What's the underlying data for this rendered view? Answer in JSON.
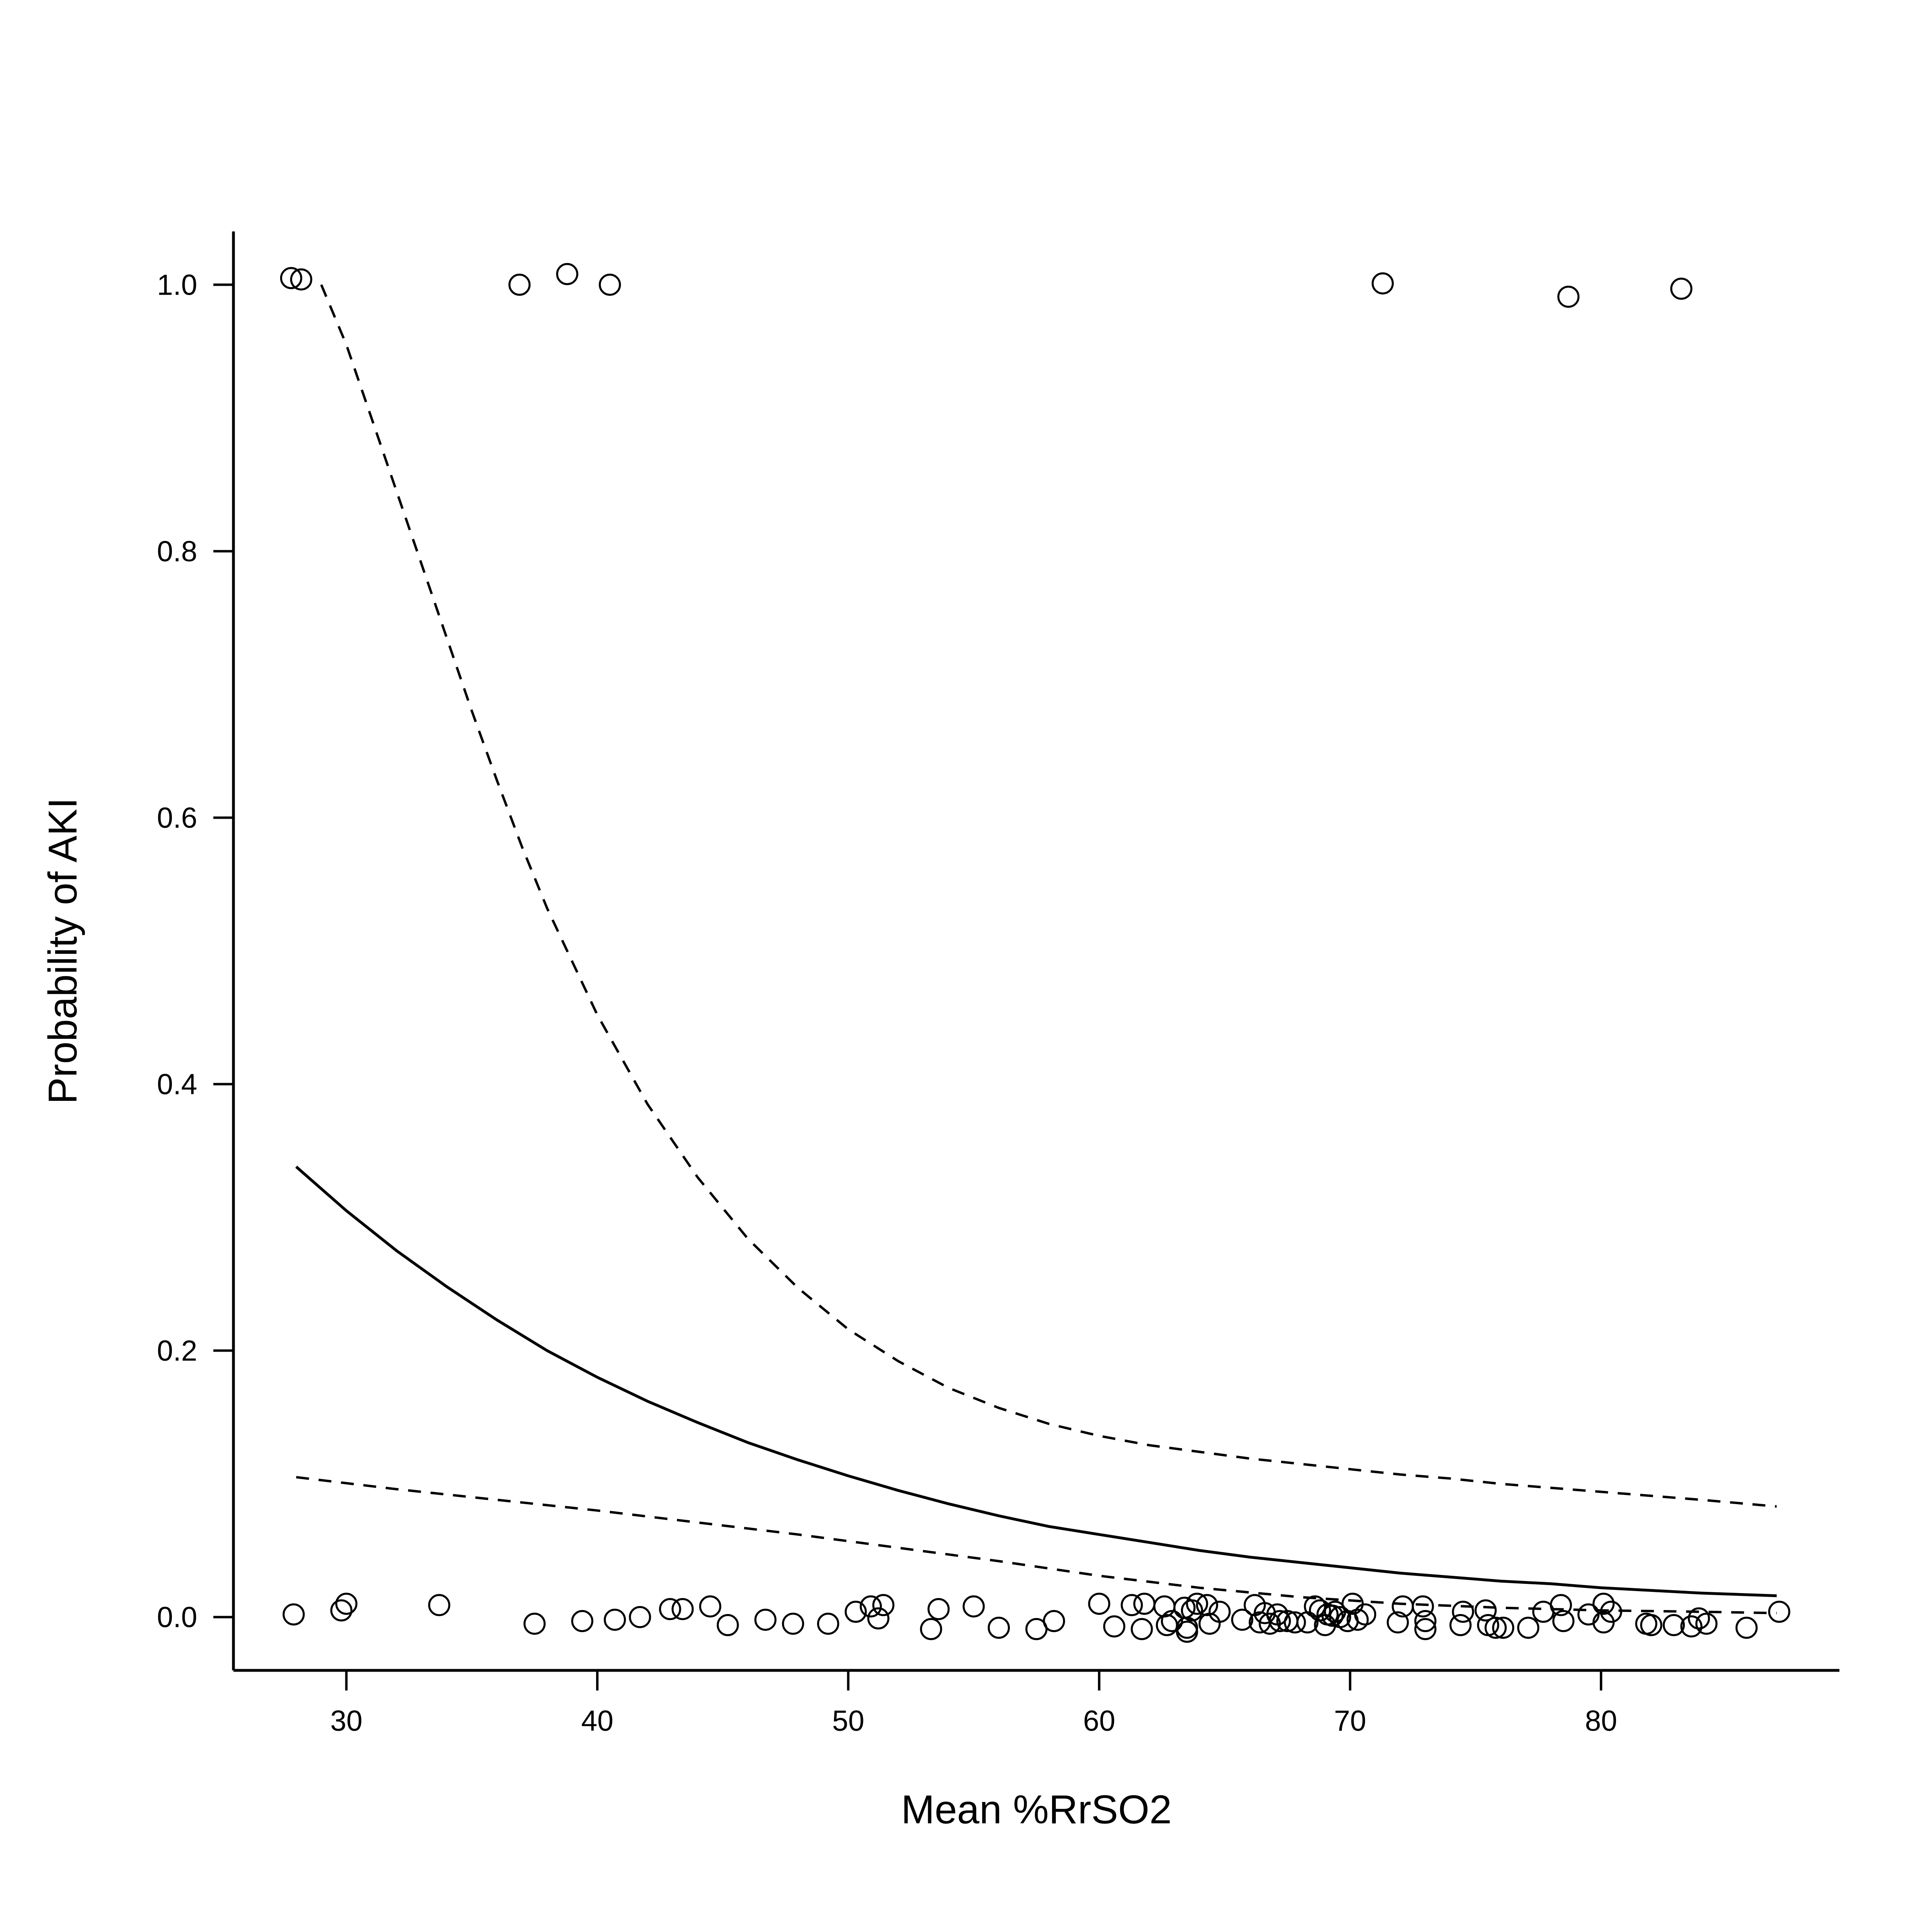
{
  "chart_data": {
    "type": "scatter",
    "title": "",
    "xlabel": "Mean %RrSO2",
    "ylabel": "Probability of AKI",
    "xlim": [
      25.5,
      89.5
    ],
    "ylim": [
      -0.04,
      1.04
    ],
    "x_ticks": [
      30,
      40,
      50,
      60,
      70,
      80
    ],
    "x_tick_labels": [
      "30",
      "40",
      "50",
      "60",
      "70",
      "80"
    ],
    "y_ticks": [
      0.0,
      0.2,
      0.4,
      0.6,
      0.8,
      1.0
    ],
    "y_tick_labels": [
      "0.0",
      "0.2",
      "0.4",
      "0.6",
      "0.8",
      "1.0"
    ],
    "grid": false,
    "legend": "none",
    "observations": {
      "marker": "open-circle",
      "points": [
        [
          27.8,
          1.005
        ],
        [
          28.2,
          1.004
        ],
        [
          36.9,
          1.0
        ],
        [
          38.8,
          1.008
        ],
        [
          40.5,
          1.0
        ],
        [
          71.3,
          1.001
        ],
        [
          78.7,
          0.991
        ],
        [
          83.2,
          0.997
        ],
        [
          27.9,
          0.002
        ],
        [
          29.8,
          0.005
        ],
        [
          30.0,
          0.01
        ],
        [
          33.7,
          0.009
        ],
        [
          37.5,
          -0.005
        ],
        [
          39.4,
          -0.003
        ],
        [
          40.7,
          -0.002
        ],
        [
          41.7,
          0.0
        ],
        [
          42.9,
          0.006
        ],
        [
          43.4,
          0.006
        ],
        [
          44.5,
          0.008
        ],
        [
          45.2,
          -0.006
        ],
        [
          46.7,
          -0.002
        ],
        [
          47.8,
          -0.005
        ],
        [
          49.2,
          -0.005
        ],
        [
          50.3,
          0.004
        ],
        [
          50.9,
          0.008
        ],
        [
          51.2,
          -0.001
        ],
        [
          51.4,
          0.009
        ],
        [
          53.3,
          -0.009
        ],
        [
          53.6,
          0.006
        ],
        [
          55.0,
          0.008
        ],
        [
          56.0,
          -0.008
        ],
        [
          57.5,
          -0.009
        ],
        [
          58.2,
          -0.003
        ],
        [
          60.0,
          0.01
        ],
        [
          60.6,
          -0.007
        ],
        [
          61.3,
          0.009
        ],
        [
          61.7,
          -0.009
        ],
        [
          61.8,
          0.01
        ],
        [
          62.6,
          0.008
        ],
        [
          62.7,
          -0.006
        ],
        [
          62.9,
          -0.003
        ],
        [
          63.4,
          0.007
        ],
        [
          63.5,
          -0.008
        ],
        [
          63.5,
          -0.011
        ],
        [
          63.7,
          0.005
        ],
        [
          63.9,
          0.01
        ],
        [
          64.3,
          0.009
        ],
        [
          64.4,
          -0.005
        ],
        [
          64.8,
          0.004
        ],
        [
          65.7,
          -0.002
        ],
        [
          66.2,
          0.009
        ],
        [
          66.4,
          -0.004
        ],
        [
          66.6,
          0.003
        ],
        [
          66.8,
          -0.005
        ],
        [
          67.1,
          0.002
        ],
        [
          67.2,
          -0.003
        ],
        [
          67.5,
          -0.003
        ],
        [
          67.8,
          -0.004
        ],
        [
          68.3,
          -0.004
        ],
        [
          68.6,
          0.008
        ],
        [
          68.8,
          0.005
        ],
        [
          69.0,
          -0.006
        ],
        [
          69.1,
          0.002
        ],
        [
          69.3,
          0.001
        ],
        [
          69.4,
          0.004
        ],
        [
          69.6,
          0.0
        ],
        [
          69.9,
          -0.003
        ],
        [
          70.1,
          0.01
        ],
        [
          70.3,
          -0.002
        ],
        [
          70.6,
          0.002
        ],
        [
          71.9,
          -0.004
        ],
        [
          72.1,
          0.008
        ],
        [
          72.9,
          0.008
        ],
        [
          73.0,
          -0.003
        ],
        [
          73.0,
          -0.009
        ],
        [
          74.4,
          -0.006
        ],
        [
          74.5,
          0.004
        ],
        [
          75.4,
          0.005
        ],
        [
          75.5,
          -0.006
        ],
        [
          75.8,
          -0.008
        ],
        [
          76.1,
          -0.008
        ],
        [
          77.1,
          -0.008
        ],
        [
          77.7,
          0.004
        ],
        [
          78.4,
          0.009
        ],
        [
          78.5,
          -0.003
        ],
        [
          79.5,
          0.002
        ],
        [
          80.1,
          0.01
        ],
        [
          80.1,
          -0.004
        ],
        [
          80.4,
          0.004
        ],
        [
          81.8,
          -0.005
        ],
        [
          82.0,
          -0.006
        ],
        [
          82.9,
          -0.006
        ],
        [
          83.6,
          -0.007
        ],
        [
          83.9,
          -0.001
        ],
        [
          84.2,
          -0.005
        ],
        [
          85.8,
          -0.008
        ],
        [
          87.1,
          0.004
        ]
      ]
    },
    "series": [
      {
        "style": "solid",
        "x": [
          28,
          30,
          32,
          34,
          36,
          38,
          40,
          42,
          44,
          46,
          48,
          50,
          52,
          54,
          56,
          58,
          60,
          62,
          64,
          66,
          68,
          70,
          72,
          74,
          76,
          78,
          80,
          82,
          84,
          87
        ],
        "y": [
          0.338,
          0.305,
          0.275,
          0.248,
          0.223,
          0.2,
          0.18,
          0.162,
          0.146,
          0.131,
          0.118,
          0.106,
          0.095,
          0.085,
          0.076,
          0.068,
          0.062,
          0.056,
          0.05,
          0.045,
          0.041,
          0.037,
          0.033,
          0.03,
          0.027,
          0.025,
          0.022,
          0.02,
          0.018,
          0.016
        ]
      },
      {
        "style": "dashed",
        "x": [
          29,
          30,
          31,
          32,
          33,
          34,
          35,
          36,
          37,
          38,
          40,
          42,
          44,
          46,
          48,
          50,
          52,
          54,
          56,
          58,
          60,
          62,
          64,
          66,
          68,
          70,
          72,
          74,
          76,
          78,
          80,
          82,
          84,
          87
        ],
        "y": [
          1.0,
          0.955,
          0.9,
          0.845,
          0.79,
          0.735,
          0.68,
          0.628,
          0.578,
          0.532,
          0.452,
          0.385,
          0.33,
          0.284,
          0.247,
          0.216,
          0.192,
          0.172,
          0.157,
          0.145,
          0.136,
          0.129,
          0.124,
          0.119,
          0.115,
          0.111,
          0.107,
          0.104,
          0.1,
          0.097,
          0.094,
          0.091,
          0.088,
          0.083
        ]
      },
      {
        "style": "dashed",
        "x": [
          28,
          32,
          36,
          40,
          44,
          48,
          52,
          56,
          60,
          64,
          68,
          72,
          76,
          80,
          84,
          87
        ],
        "y": [
          0.105,
          0.096,
          0.088,
          0.08,
          0.071,
          0.062,
          0.052,
          0.042,
          0.031,
          0.022,
          0.015,
          0.01,
          0.007,
          0.005,
          0.004,
          0.003
        ]
      }
    ]
  }
}
